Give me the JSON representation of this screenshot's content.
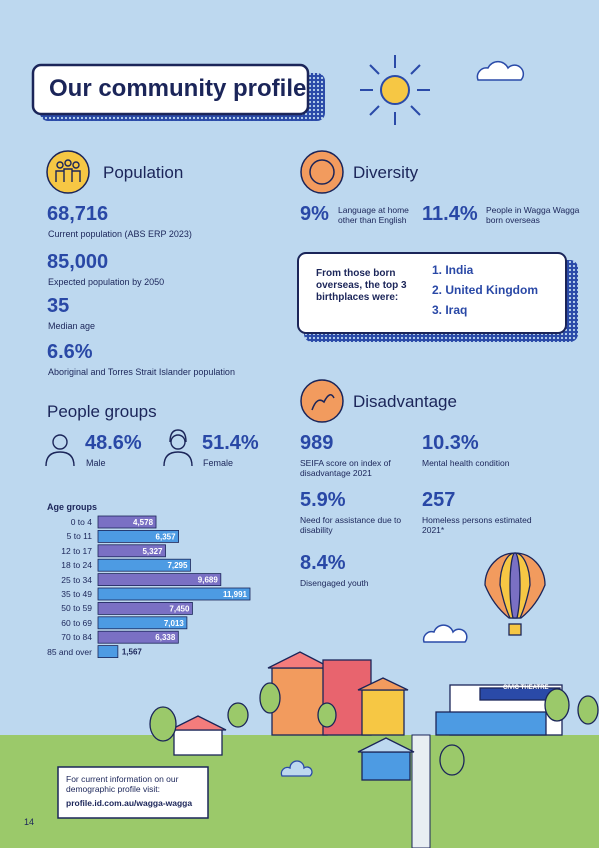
{
  "title": "Our community profile",
  "population": {
    "heading": "Population",
    "stats": [
      {
        "value": "68,716",
        "label": "Current population (ABS ERP 2023)"
      },
      {
        "value": "85,000",
        "label": "Expected population by 2050"
      },
      {
        "value": "35",
        "label": "Median age"
      },
      {
        "value": "6.6%",
        "label": "Aboriginal and Torres Strait Islander population"
      }
    ]
  },
  "people_groups": {
    "heading": "People groups",
    "male": {
      "value": "48.6%",
      "label": "Male"
    },
    "female": {
      "value": "51.4%",
      "label": "Female"
    }
  },
  "age_groups": {
    "heading": "Age groups",
    "categories": [
      "0 to 4",
      "5 to 11",
      "12 to 17",
      "18 to 24",
      "25 to 34",
      "35 to 49",
      "50 to 59",
      "60 to 69",
      "70 to 84",
      "85 and over"
    ],
    "values": [
      4578,
      6357,
      5327,
      7295,
      9689,
      11991,
      7450,
      7013,
      6338,
      1567
    ],
    "value_labels": [
      "4,578",
      "6,357",
      "5,327",
      "7,295",
      "9,689",
      "11,991",
      "7,450",
      "7,013",
      "6,338",
      "1,567"
    ],
    "colors": [
      "#7a70c4",
      "#4d9be3",
      "#7a70c4",
      "#4d9be3",
      "#7a70c4",
      "#4d9be3",
      "#7a70c4",
      "#4d9be3",
      "#7a70c4",
      "#4d9be3"
    ]
  },
  "diversity": {
    "heading": "Diversity",
    "stats": [
      {
        "value": "9%",
        "label": "Language at home other than English"
      },
      {
        "value": "11.4%",
        "label": "People in Wagga Wagga born overseas"
      }
    ],
    "box": {
      "text": "From those born overseas, the top 3 birthplaces were:",
      "list": [
        "1. India",
        "2. United Kingdom",
        "3. Iraq"
      ]
    }
  },
  "disadvantage": {
    "heading": "Disadvantage",
    "stats": [
      {
        "value": "989",
        "label": "SEIFA score on index of disadvantage 2021"
      },
      {
        "value": "10.3%",
        "label": "Mental health condition"
      },
      {
        "value": "5.9%",
        "label": "Need for assistance due to disability"
      },
      {
        "value": "257",
        "label": "Homeless persons estimated 2021*"
      },
      {
        "value": "8.4%",
        "label": "Disengaged youth"
      }
    ]
  },
  "illustration": {
    "sign": "CIVIC THEATRE"
  },
  "footer": {
    "text": "For current information on our demographic profile visit:",
    "link": "profile.id.com.au/wagga-wagga"
  },
  "page_number": "14"
}
